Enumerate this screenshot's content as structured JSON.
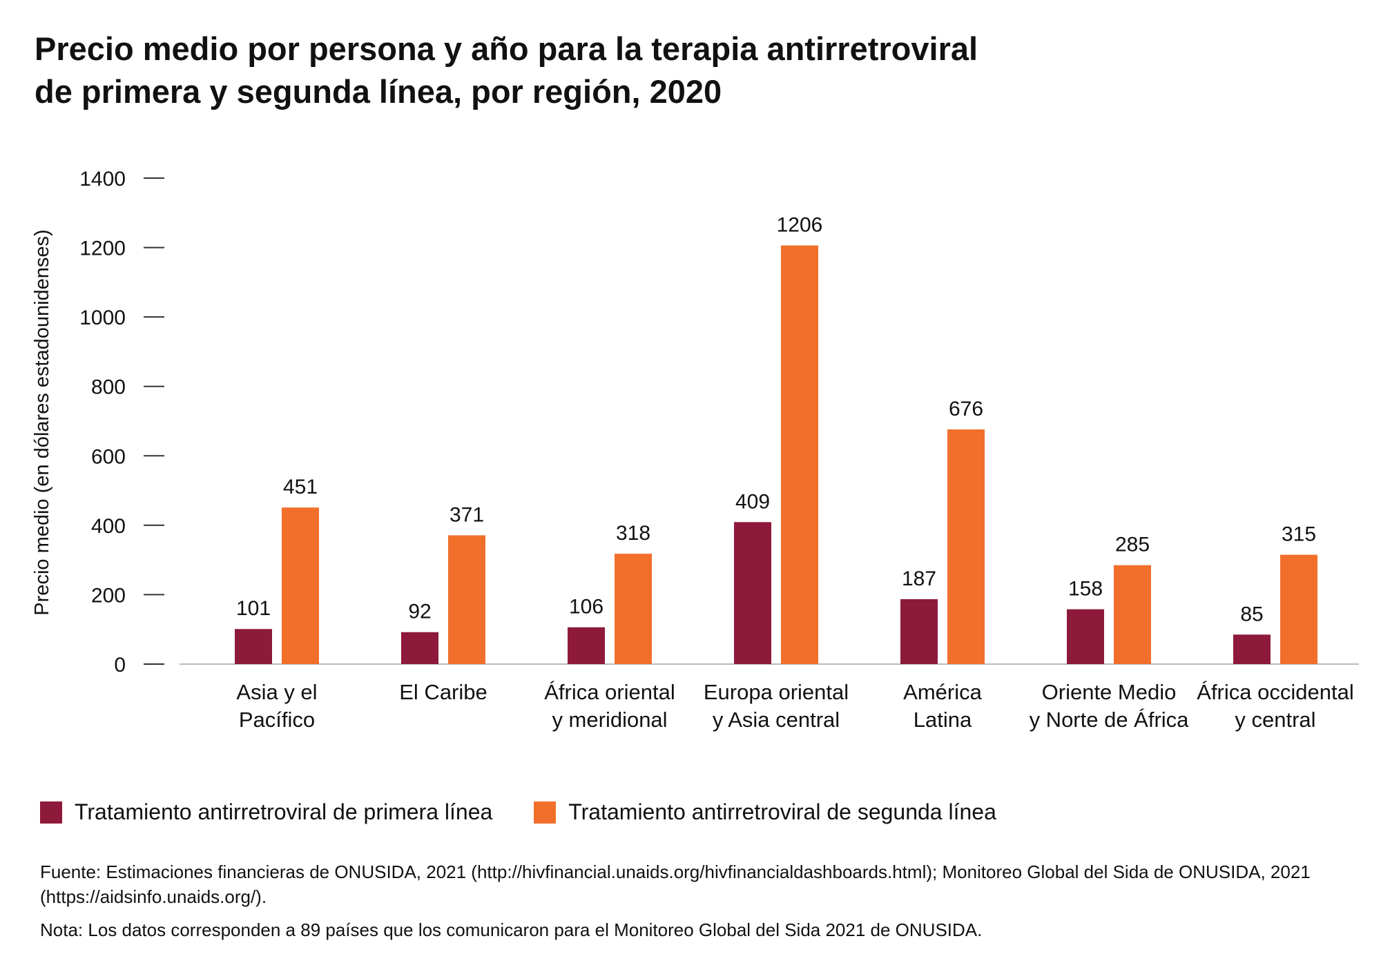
{
  "title_lines": [
    "Precio medio por persona y año para la terapia antirretroviral",
    "de primera y segunda línea, por región, 2020"
  ],
  "colors": {
    "primera": "#8e1a3b",
    "segunda": "#f26f2b",
    "axis": "#bbbbbb",
    "text": "#111111"
  },
  "chart_data": {
    "type": "bar",
    "title": "Precio medio por persona y año para la terapia antirretroviral de primera y segunda línea, por región, 2020",
    "ylabel": "Precio medio (en dólares estadounidenses)",
    "xlabel": "",
    "ylim": [
      0,
      1400
    ],
    "yticks": [
      0,
      200,
      400,
      600,
      800,
      1000,
      1200,
      1400
    ],
    "grid": false,
    "legend_position": "bottom",
    "categories": [
      [
        "Asia y el",
        "Pacífico"
      ],
      [
        "El Caribe"
      ],
      [
        "África oriental",
        "y meridional"
      ],
      [
        "Europa oriental",
        "y Asia central"
      ],
      [
        "América",
        "Latina"
      ],
      [
        "Oriente Medio",
        "y Norte de África"
      ],
      [
        "África occidental",
        "y central"
      ]
    ],
    "series": [
      {
        "name": "Tratamiento antirretroviral de primera línea",
        "values": [
          101,
          92,
          106,
          409,
          187,
          158,
          85
        ]
      },
      {
        "name": "Tratamiento antirretroviral de segunda línea",
        "values": [
          451,
          371,
          318,
          1206,
          676,
          285,
          315
        ]
      }
    ]
  },
  "legend": [
    "Tratamiento antirretroviral de primera línea",
    "Tratamiento antirretroviral de segunda línea"
  ],
  "notes": {
    "source": "Fuente: Estimaciones financieras de ONUSIDA, 2021 (http://hivfinancial.unaids.org/hivfinancialdashboards.html); Monitoreo Global del Sida de ONUSIDA, 2021 (https://aidsinfo.unaids.org/).",
    "note": "Nota: Los datos corresponden a 89 países que los comunicaron para el Monitoreo Global del Sida 2021 de ONUSIDA."
  }
}
